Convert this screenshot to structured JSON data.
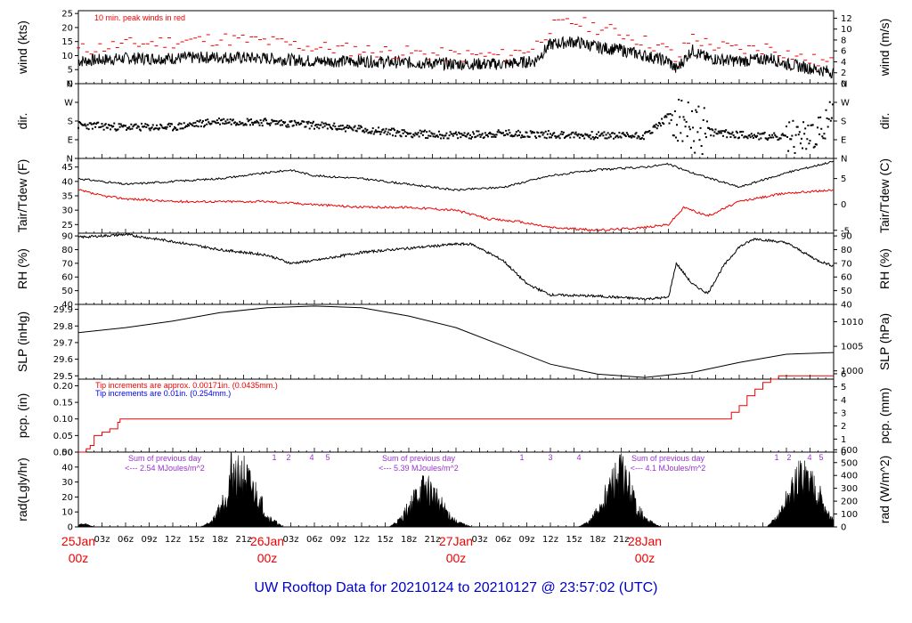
{
  "title": "UW Rooftop Data for 20210124  to  20210127 @ 23:57:02  (UTC)",
  "colors": {
    "title": "#0000cc",
    "red": "#ee0000",
    "blue": "#0000ee",
    "purple": "#9933cc",
    "line": "#000000"
  },
  "time_axis": {
    "hour_labels": [
      "03z",
      "06z",
      "09z",
      "12z",
      "15z",
      "18z",
      "21z"
    ],
    "days": [
      {
        "date": "25Jan",
        "hour": "00z"
      },
      {
        "date": "26Jan",
        "hour": "00z"
      },
      {
        "date": "27Jan",
        "hour": "00z"
      },
      {
        "date": "28Jan",
        "hour": "00z"
      }
    ]
  },
  "panels": {
    "wind": {
      "left_label": "wind (kts)",
      "right_label": "wind (m/s)",
      "note": "10 min. peak winds in red",
      "left_ticks": [
        "0",
        "5",
        "10",
        "15",
        "20",
        "25"
      ],
      "right_ticks": [
        "0",
        "2",
        "4",
        "6",
        "8",
        "10",
        "12"
      ]
    },
    "dir": {
      "left_label": "dir.",
      "right_label": "dir.",
      "ticks": [
        "N",
        "E",
        "S",
        "W",
        "N"
      ]
    },
    "temp": {
      "left_label": "Tair/Tdew (F)",
      "right_label": "Tair/Tdew (C)",
      "left_ticks": [
        "25",
        "30",
        "35",
        "40",
        "45"
      ],
      "right_ticks": [
        "-5",
        "0",
        "5"
      ]
    },
    "rh": {
      "left_label": "RH (%)",
      "right_label": "RH (%)",
      "ticks": [
        "40",
        "50",
        "60",
        "70",
        "80",
        "90"
      ]
    },
    "slp": {
      "left_label": "SLP (inHg)",
      "right_label": "SLP (hPa)",
      "left_ticks": [
        "29.5",
        "29.6",
        "29.7",
        "29.8",
        "29.9"
      ],
      "right_ticks": [
        "1000",
        "1005",
        "1010"
      ]
    },
    "pcp": {
      "left_label": "pcp. (in)",
      "right_label": "pcp. (mm)",
      "note_red": "Tip increments are approx. 0.00171in. (0.0435mm.)",
      "note_blue": "Tip increments are 0.01in. (0.254mm.)",
      "left_ticks": [
        "0.00",
        "0.05",
        "0.10",
        "0.15",
        "0.20"
      ],
      "right_ticks": [
        "0",
        "1",
        "2",
        "3",
        "4",
        "5",
        "6"
      ]
    },
    "rad": {
      "left_label": "rad(Lgly/hr)",
      "right_label": "rad (W/m^2)",
      "left_ticks": [
        "0",
        "10",
        "20",
        "30",
        "40",
        "50"
      ],
      "right_ticks": [
        "0",
        "100",
        "200",
        "300",
        "400",
        "500",
        "600"
      ],
      "sum_label": "Sum of previous day",
      "sums": [
        "<--- 2.54 MJoules/m^2",
        "<--- 5.39 MJoules/m^2",
        "<--- 4.1 MJoules/m^2"
      ],
      "marker_labels": [
        "1",
        "2",
        "3",
        "4",
        "5"
      ]
    }
  },
  "chart_data": [
    {
      "type": "line",
      "name": "wind",
      "x_unit": "hours since 25Jan 00z",
      "xlim": [
        0,
        96
      ],
      "ylim": [
        0,
        26
      ],
      "series": [
        {
          "name": "wind speed (kts)",
          "x": [
            0,
            6,
            12,
            18,
            24,
            30,
            36,
            42,
            48,
            54,
            58,
            60,
            63,
            66,
            69,
            72,
            75,
            76,
            78,
            80,
            84,
            88,
            90,
            92,
            94,
            96
          ],
          "y": [
            8,
            9,
            9,
            9.5,
            9,
            8,
            8,
            7.5,
            7,
            7,
            8,
            14,
            15,
            13,
            12,
            10,
            8,
            5,
            12,
            9,
            8,
            9,
            7,
            6,
            5,
            4
          ]
        },
        {
          "name": "10 min. peak winds",
          "x": [
            0,
            6,
            12,
            18,
            24,
            30,
            36,
            42,
            48,
            54,
            58,
            60,
            63,
            66,
            69,
            72,
            75,
            76,
            78,
            80,
            84,
            88,
            90,
            92,
            94,
            96
          ],
          "y": [
            12,
            14,
            15,
            16,
            15,
            13,
            12,
            11,
            10,
            10,
            13,
            20,
            22,
            20,
            18,
            15,
            12,
            8,
            17,
            14,
            12,
            13,
            11,
            9,
            8,
            7
          ]
        }
      ]
    },
    {
      "type": "scatter",
      "name": "dir",
      "x_unit": "hours since 25Jan 00z",
      "ylim": [
        0,
        360
      ],
      "ytick_labels": [
        "N",
        "E",
        "S",
        "W",
        "N"
      ],
      "series": [
        {
          "name": "wind direction (deg)",
          "x": [
            0,
            6,
            12,
            18,
            24,
            30,
            36,
            42,
            48,
            54,
            60,
            66,
            72,
            75,
            78,
            82,
            86,
            90,
            94,
            96
          ],
          "y": [
            160,
            150,
            150,
            180,
            175,
            160,
            140,
            120,
            110,
            120,
            115,
            110,
            110,
            200,
            140,
            120,
            110,
            100,
            115,
            220
          ]
        }
      ]
    },
    {
      "type": "line",
      "name": "temp",
      "x_unit": "hours since 25Jan 00z",
      "ylim": [
        22,
        48
      ],
      "series": [
        {
          "name": "Tair (F)",
          "x": [
            0,
            6,
            12,
            18,
            24,
            27,
            30,
            36,
            42,
            48,
            54,
            60,
            66,
            72,
            75,
            78,
            84,
            90,
            96
          ],
          "y": [
            41,
            39,
            40,
            41,
            43,
            44,
            42,
            41,
            39,
            37,
            38,
            42,
            44,
            45,
            46,
            43,
            38,
            43,
            47
          ]
        },
        {
          "name": "Tdew (F)",
          "x": [
            0,
            3,
            6,
            12,
            18,
            24,
            30,
            36,
            42,
            48,
            52,
            56,
            60,
            66,
            72,
            75,
            77,
            80,
            84,
            90,
            96
          ],
          "y": [
            37,
            35,
            34,
            33,
            33,
            33,
            32,
            31,
            31,
            30,
            27,
            26,
            24,
            23,
            24,
            25,
            31,
            28,
            33,
            36,
            37
          ]
        }
      ]
    },
    {
      "type": "line",
      "name": "rh",
      "x_unit": "hours since 25Jan 00z",
      "ylim": [
        40,
        92
      ],
      "series": [
        {
          "name": "RH (%)",
          "x": [
            0,
            3,
            6,
            12,
            18,
            24,
            27,
            30,
            36,
            42,
            48,
            50,
            52,
            54,
            57,
            60,
            66,
            72,
            75,
            76,
            78,
            80,
            82,
            84,
            86,
            90,
            94,
            96
          ],
          "y": [
            89,
            90,
            91,
            86,
            80,
            76,
            70,
            72,
            78,
            81,
            84,
            84,
            78,
            72,
            55,
            47,
            46,
            44,
            45,
            70,
            55,
            48,
            68,
            82,
            88,
            85,
            72,
            68
          ]
        }
      ]
    },
    {
      "type": "line",
      "name": "slp",
      "x_unit": "hours since 25Jan 00z",
      "ylim": [
        29.48,
        29.93
      ],
      "series": [
        {
          "name": "SLP (inHg)",
          "x": [
            0,
            6,
            12,
            18,
            24,
            30,
            36,
            42,
            48,
            54,
            60,
            66,
            72,
            78,
            84,
            90,
            96
          ],
          "y": [
            29.76,
            29.79,
            29.83,
            29.88,
            29.91,
            29.92,
            29.91,
            29.86,
            29.79,
            29.68,
            29.57,
            29.51,
            29.49,
            29.52,
            29.58,
            29.63,
            29.64
          ]
        }
      ]
    },
    {
      "type": "line",
      "name": "pcp",
      "x_unit": "hours since 25Jan 00z",
      "ylim": [
        0,
        0.22
      ],
      "series": [
        {
          "name": "pcp. (in)",
          "x": [
            0,
            0.7,
            1,
            1.5,
            2,
            3,
            4,
            5,
            5.3,
            60,
            82,
            83,
            84,
            85,
            86,
            87,
            88,
            89,
            96
          ],
          "y": [
            0,
            0,
            0.01,
            0.02,
            0.05,
            0.06,
            0.07,
            0.09,
            0.1,
            0.1,
            0.1,
            0.12,
            0.14,
            0.17,
            0.19,
            0.21,
            0.22,
            0.23,
            0.23
          ]
        }
      ]
    },
    {
      "type": "area",
      "name": "rad",
      "x_unit": "hours since 25Jan 00z",
      "ylim": [
        0,
        50
      ],
      "series": [
        {
          "name": "rad (Lgly/hr)",
          "x": [
            0,
            1,
            2,
            15.5,
            17,
            18,
            19,
            19.5,
            20,
            21,
            22,
            23,
            24,
            26,
            39.5,
            41,
            42,
            43,
            44,
            45,
            46,
            47,
            48,
            50,
            63.5,
            65,
            66,
            67,
            68,
            69,
            70,
            71,
            72,
            74,
            87.5,
            89,
            90,
            91,
            92,
            93,
            94,
            95,
            96
          ],
          "y": [
            2,
            2,
            0,
            0,
            4,
            15,
            28,
            45,
            38,
            40,
            30,
            22,
            8,
            0,
            0,
            6,
            15,
            24,
            30,
            26,
            18,
            10,
            4,
            0,
            0,
            4,
            12,
            24,
            34,
            42,
            30,
            15,
            6,
            0,
            0,
            8,
            20,
            30,
            40,
            35,
            28,
            12,
            4
          ]
        }
      ]
    }
  ]
}
